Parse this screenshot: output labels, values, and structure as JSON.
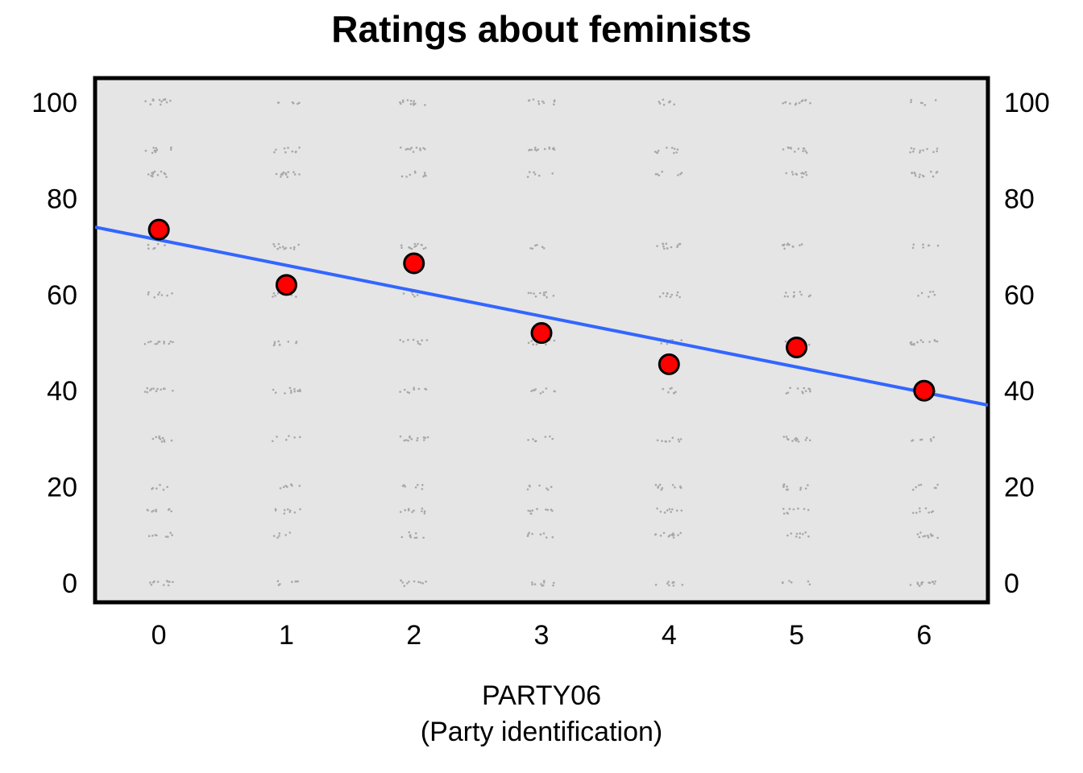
{
  "chart_data": {
    "type": "scatter",
    "title": "Ratings about feminists",
    "xlabel": "PARTY06",
    "xlabel_sub": "(Party identification)",
    "ylabel": "",
    "x_ticks": [
      0,
      1,
      2,
      3,
      4,
      5,
      6
    ],
    "y_ticks": [
      0,
      20,
      40,
      60,
      80,
      100
    ],
    "xlim": [
      -0.5,
      6.5
    ],
    "ylim": [
      -4,
      105
    ],
    "grid": false,
    "legend": "none",
    "points": [
      {
        "x": 0,
        "y": 73.5
      },
      {
        "x": 1,
        "y": 62.0
      },
      {
        "x": 2,
        "y": 66.5
      },
      {
        "x": 3,
        "y": 52.0
      },
      {
        "x": 4,
        "y": 45.5
      },
      {
        "x": 5,
        "y": 49.0
      },
      {
        "x": 6,
        "y": 40.0
      }
    ],
    "regression_line": {
      "x": [
        -0.5,
        6.5
      ],
      "y": [
        74.0,
        37.0
      ]
    },
    "jitter_values": [
      0,
      10,
      15,
      20,
      30,
      40,
      50,
      60,
      70,
      85,
      90,
      100
    ],
    "colors": {
      "panel": "#e5e5e5",
      "points": "#ff0000",
      "line": "#3366ff",
      "jitter": "#a8a8a8"
    }
  }
}
